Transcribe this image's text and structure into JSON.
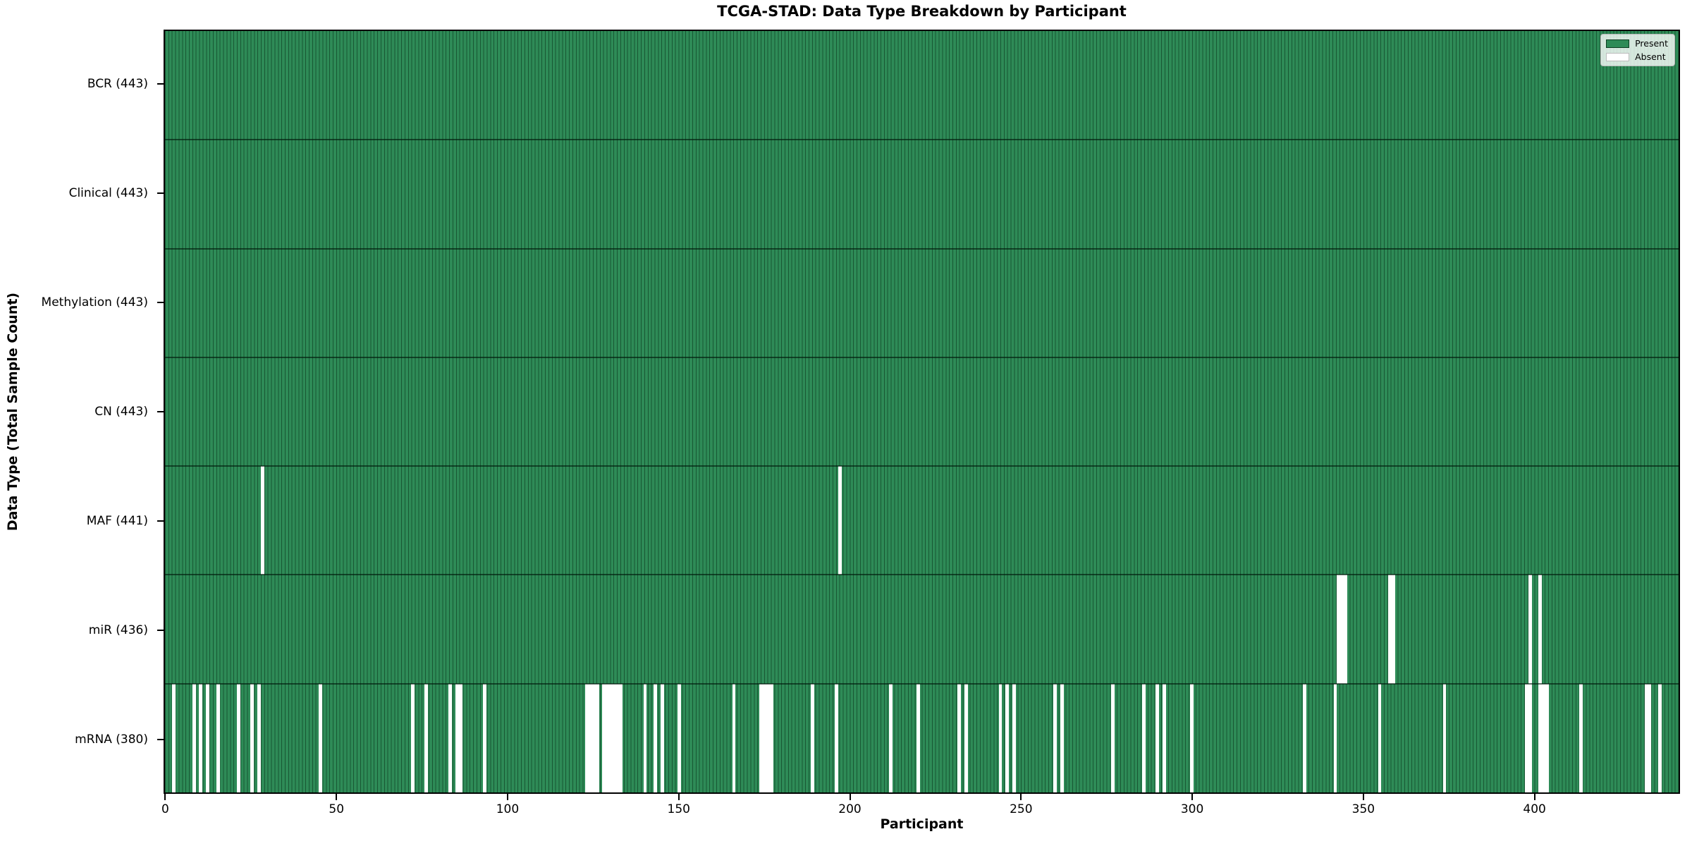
{
  "chart_data": {
    "type": "heatmap",
    "title": "TCGA-STAD: Data Type Breakdown by Participant",
    "xlabel": "Participant",
    "ylabel": "Data Type (Total Sample Count)",
    "n_participants": 443,
    "x_ticks": [
      0,
      50,
      100,
      150,
      200,
      250,
      300,
      350,
      400
    ],
    "grid": "off",
    "legend": {
      "position": "upper right",
      "present_label": "Present",
      "absent_label": "Absent"
    },
    "colors": {
      "present": "#2E8B57",
      "absent": "#FFFFFF"
    },
    "rows": [
      {
        "name": "bcr",
        "label": "BCR (443)",
        "total": 443,
        "absent": []
      },
      {
        "name": "clinical",
        "label": "Clinical (443)",
        "total": 443,
        "absent": []
      },
      {
        "name": "methylation",
        "label": "Methylation (443)",
        "total": 443,
        "absent": []
      },
      {
        "name": "cn",
        "label": "CN (443)",
        "total": 443,
        "absent": []
      },
      {
        "name": "maf",
        "label": "MAF (441)",
        "total": 441,
        "absent": [
          28,
          197
        ]
      },
      {
        "name": "mir",
        "label": "miR (436)",
        "total": 436,
        "absent": [
          343,
          344,
          345,
          358,
          359,
          399,
          402
        ]
      },
      {
        "name": "mrna",
        "label": "mRNA (380)",
        "total": 380,
        "absent": [
          2,
          8,
          10,
          12,
          15,
          21,
          25,
          27,
          45,
          72,
          76,
          83,
          85,
          86,
          93,
          123,
          124,
          125,
          126,
          128,
          129,
          130,
          131,
          132,
          133,
          140,
          143,
          145,
          150,
          166,
          174,
          175,
          176,
          177,
          189,
          196,
          212,
          220,
          232,
          234,
          244,
          246,
          248,
          260,
          262,
          277,
          286,
          290,
          292,
          300,
          333,
          342,
          355,
          374,
          398,
          399,
          402,
          403,
          404,
          414,
          433,
          434,
          437
        ]
      }
    ]
  }
}
